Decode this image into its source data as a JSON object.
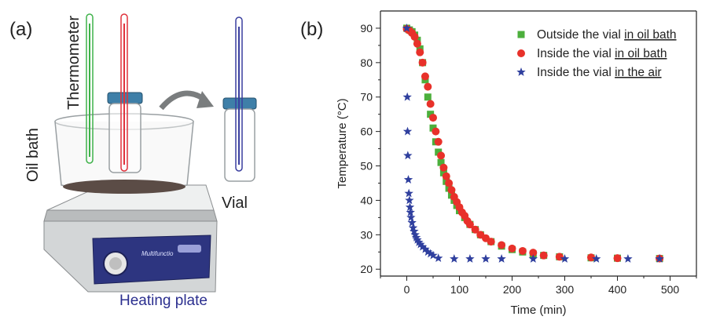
{
  "panel_a": {
    "label": "(a)",
    "callouts": {
      "thermometer": "Thermometer",
      "oil_bath": "Oil bath",
      "vial": "Vial",
      "heating_plate": "Heating plate"
    },
    "device_logo_text": "Multifunctio"
  },
  "panel_b": {
    "label": "(b)"
  },
  "colors": {
    "outside_vial_oil": "#4caf3c",
    "inside_vial_oil": "#e8312a",
    "inside_vial_air": "#2f3f9e",
    "thermometer_green": "#3fb24a",
    "thermometer_red": "#e0323c",
    "thermometer_blue": "#3a3f9f",
    "plate_body": "#d9dcdc",
    "plate_panel": "#2d3580"
  },
  "chart_data": {
    "type": "scatter",
    "xlabel": "Time (min)",
    "ylabel": "Temperature (°C)",
    "xlim": [
      -50,
      550
    ],
    "ylim": [
      18,
      95
    ],
    "xticks": [
      0,
      100,
      200,
      300,
      400,
      500
    ],
    "yticks": [
      20,
      30,
      40,
      50,
      60,
      70,
      80,
      90
    ],
    "grid": false,
    "legend_position": "top-right",
    "series": [
      {
        "name": "Outside the vial in oil bath",
        "label_plain": "Outside the vial ",
        "label_underlined": "in oil bath",
        "marker": "square",
        "color": "#4caf3c",
        "points": [
          [
            0,
            90
          ],
          [
            5,
            89.5
          ],
          [
            10,
            89
          ],
          [
            15,
            88
          ],
          [
            20,
            86.5
          ],
          [
            25,
            84
          ],
          [
            30,
            80
          ],
          [
            35,
            75
          ],
          [
            40,
            70
          ],
          [
            45,
            65
          ],
          [
            50,
            61
          ],
          [
            55,
            57
          ],
          [
            60,
            54
          ],
          [
            65,
            51
          ],
          [
            70,
            48
          ],
          [
            75,
            45.5
          ],
          [
            80,
            43.5
          ],
          [
            85,
            41.5
          ],
          [
            90,
            40
          ],
          [
            95,
            38.5
          ],
          [
            100,
            37
          ],
          [
            110,
            35
          ],
          [
            120,
            33
          ],
          [
            130,
            31.5
          ],
          [
            140,
            30
          ],
          [
            160,
            28
          ],
          [
            180,
            26.7
          ],
          [
            200,
            25.7
          ],
          [
            220,
            25
          ],
          [
            240,
            24.4
          ],
          [
            260,
            24
          ],
          [
            290,
            23.6
          ],
          [
            350,
            23.3
          ],
          [
            400,
            23.2
          ],
          [
            480,
            23.1
          ]
        ]
      },
      {
        "name": "Inside the vial in oil bath",
        "label_plain": "Inside the vial ",
        "label_underlined": "in oil bath",
        "marker": "circle",
        "color": "#e8312a",
        "points": [
          [
            0,
            89.8
          ],
          [
            5,
            89.3
          ],
          [
            10,
            88.6
          ],
          [
            15,
            87.5
          ],
          [
            20,
            85.5
          ],
          [
            25,
            83
          ],
          [
            30,
            80
          ],
          [
            35,
            76
          ],
          [
            40,
            73
          ],
          [
            45,
            68
          ],
          [
            50,
            64
          ],
          [
            55,
            60
          ],
          [
            60,
            57
          ],
          [
            65,
            53
          ],
          [
            70,
            49.5
          ],
          [
            75,
            47
          ],
          [
            80,
            45
          ],
          [
            85,
            43
          ],
          [
            90,
            41
          ],
          [
            95,
            39.5
          ],
          [
            100,
            38
          ],
          [
            105,
            36.5
          ],
          [
            110,
            35.5
          ],
          [
            115,
            34
          ],
          [
            120,
            33
          ],
          [
            130,
            31.5
          ],
          [
            140,
            30
          ],
          [
            150,
            29
          ],
          [
            160,
            28
          ],
          [
            180,
            27
          ],
          [
            200,
            26
          ],
          [
            220,
            25.3
          ],
          [
            240,
            24.8
          ],
          [
            260,
            24
          ],
          [
            290,
            23.6
          ],
          [
            350,
            23.4
          ],
          [
            400,
            23.2
          ],
          [
            480,
            23.1
          ]
        ]
      },
      {
        "name": "Inside the vial in the air",
        "label_plain": "Inside the vial ",
        "label_underlined": "in the air",
        "marker": "star",
        "color": "#2f3f9e",
        "points": [
          [
            0,
            90
          ],
          [
            1,
            70
          ],
          [
            1.5,
            60
          ],
          [
            2,
            53
          ],
          [
            3,
            46
          ],
          [
            4,
            42
          ],
          [
            5,
            40
          ],
          [
            6,
            38
          ],
          [
            7,
            36.5
          ],
          [
            8,
            35
          ],
          [
            10,
            33.5
          ],
          [
            12,
            32
          ],
          [
            14,
            31
          ],
          [
            16,
            30
          ],
          [
            18,
            29.2
          ],
          [
            20,
            28.5
          ],
          [
            23,
            27.8
          ],
          [
            26,
            27.2
          ],
          [
            30,
            26.5
          ],
          [
            35,
            25.8
          ],
          [
            40,
            25
          ],
          [
            45,
            24.5
          ],
          [
            50,
            24
          ],
          [
            60,
            23.2
          ],
          [
            90,
            23
          ],
          [
            120,
            23
          ],
          [
            150,
            23
          ],
          [
            180,
            23
          ],
          [
            240,
            23
          ],
          [
            300,
            23
          ],
          [
            360,
            23
          ],
          [
            420,
            23
          ],
          [
            480,
            23
          ]
        ]
      }
    ]
  }
}
